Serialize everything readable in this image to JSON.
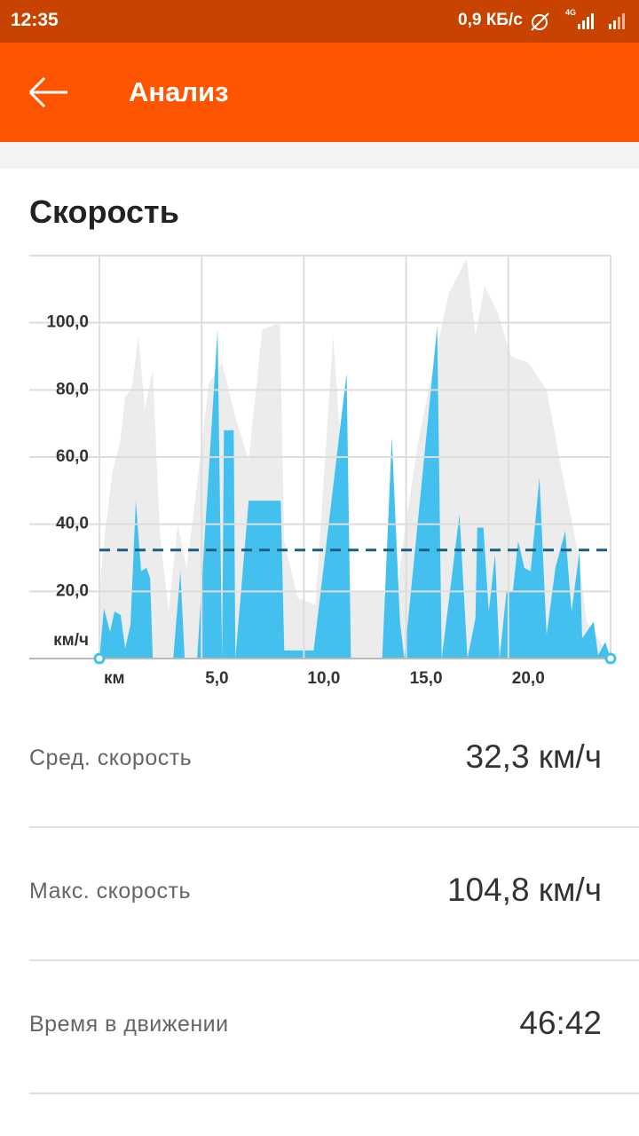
{
  "status_bar": {
    "time": "12:35",
    "speed": "0,9 КБ/с",
    "network": "4G"
  },
  "app_bar": {
    "title": "Анализ"
  },
  "section": {
    "title": "Скорость"
  },
  "chart_data": {
    "type": "area",
    "x_unit": "км",
    "y_unit": "км/ч",
    "xlim": [
      0,
      25
    ],
    "ylim": [
      0,
      120
    ],
    "xticks": [
      {
        "value": 5,
        "label": "5,0"
      },
      {
        "value": 10,
        "label": "10,0"
      },
      {
        "value": 15,
        "label": "15,0"
      },
      {
        "value": 20,
        "label": "20,0"
      }
    ],
    "yticks": [
      {
        "value": 20,
        "label": "20,0"
      },
      {
        "value": 40,
        "label": "40,0"
      },
      {
        "value": 60,
        "label": "60,0"
      },
      {
        "value": 80,
        "label": "80,0"
      },
      {
        "value": 100,
        "label": "100,0"
      }
    ],
    "grid": true,
    "average": 32.3,
    "average_color": "#1a5f80",
    "series": [
      {
        "color": "#ececec",
        "x": [
          0,
          0,
          0.26,
          0.65,
          1.0,
          1.26,
          1.57,
          1.91,
          2.22,
          2.61,
          2.96,
          3.39,
          3.83,
          4.26,
          4.7,
          5.35,
          6.0,
          6.65,
          7.3,
          7.96,
          8.83,
          9.04,
          9.7,
          10.57,
          11.43,
          12.3,
          13.83,
          14.48,
          14.91,
          15.57,
          16.43,
          17.09,
          17.96,
          18.39,
          18.83,
          19.48,
          20.13,
          21.0,
          21.87,
          22.52,
          23.39,
          23.83,
          25
        ],
        "values": [
          0,
          20,
          37,
          56,
          64,
          78,
          80,
          96,
          74,
          86,
          37,
          14,
          40,
          27,
          48,
          82,
          88,
          72,
          59,
          98,
          100,
          35,
          18,
          16,
          96,
          20,
          20,
          16,
          37,
          64,
          90,
          109,
          119,
          96,
          111,
          103,
          90,
          88,
          80,
          59,
          32,
          11,
          0
        ]
      },
      {
        "color": "#44c0ef",
        "x": [
          0,
          0.22,
          0.52,
          0.74,
          1.04,
          1.26,
          1.52,
          1.78,
          2.04,
          2.3,
          2.48,
          2.61,
          3.61,
          3.96,
          4.17,
          4.78,
          5.78,
          6.0,
          6.09,
          6.57,
          6.65,
          7.3,
          8.87,
          9.04,
          10.48,
          12.09,
          12.3,
          13.83,
          14.3,
          14.7,
          14.91,
          16.52,
          16.74,
          17.61,
          18.0,
          18.39,
          18.48,
          18.78,
          19.04,
          19.35,
          19.57,
          19.91,
          20.22,
          20.48,
          20.78,
          21.09,
          21.52,
          21.87,
          22.3,
          22.78,
          23.09,
          23.48,
          23.61,
          24.17,
          24.39,
          24.74,
          25
        ],
        "values": [
          0,
          15,
          8,
          14,
          13,
          3,
          10,
          47,
          26,
          27,
          24,
          0,
          0,
          26,
          0,
          0,
          98,
          0,
          68,
          68,
          0,
          47,
          47,
          2.4,
          2.4,
          85,
          0,
          0,
          66,
          11,
          0,
          99,
          0,
          43,
          0,
          12,
          39,
          39,
          14,
          31,
          0,
          20,
          20,
          35,
          27,
          26,
          54,
          7,
          27,
          38,
          14,
          32,
          6,
          11,
          1,
          5,
          0
        ]
      }
    ]
  },
  "stats": [
    {
      "label": "Сред. скорость",
      "value": "32,3 км/ч"
    },
    {
      "label": "Макс. скорость",
      "value": "104,8 км/ч"
    },
    {
      "label": "Время в движении",
      "value": "46:42"
    }
  ]
}
